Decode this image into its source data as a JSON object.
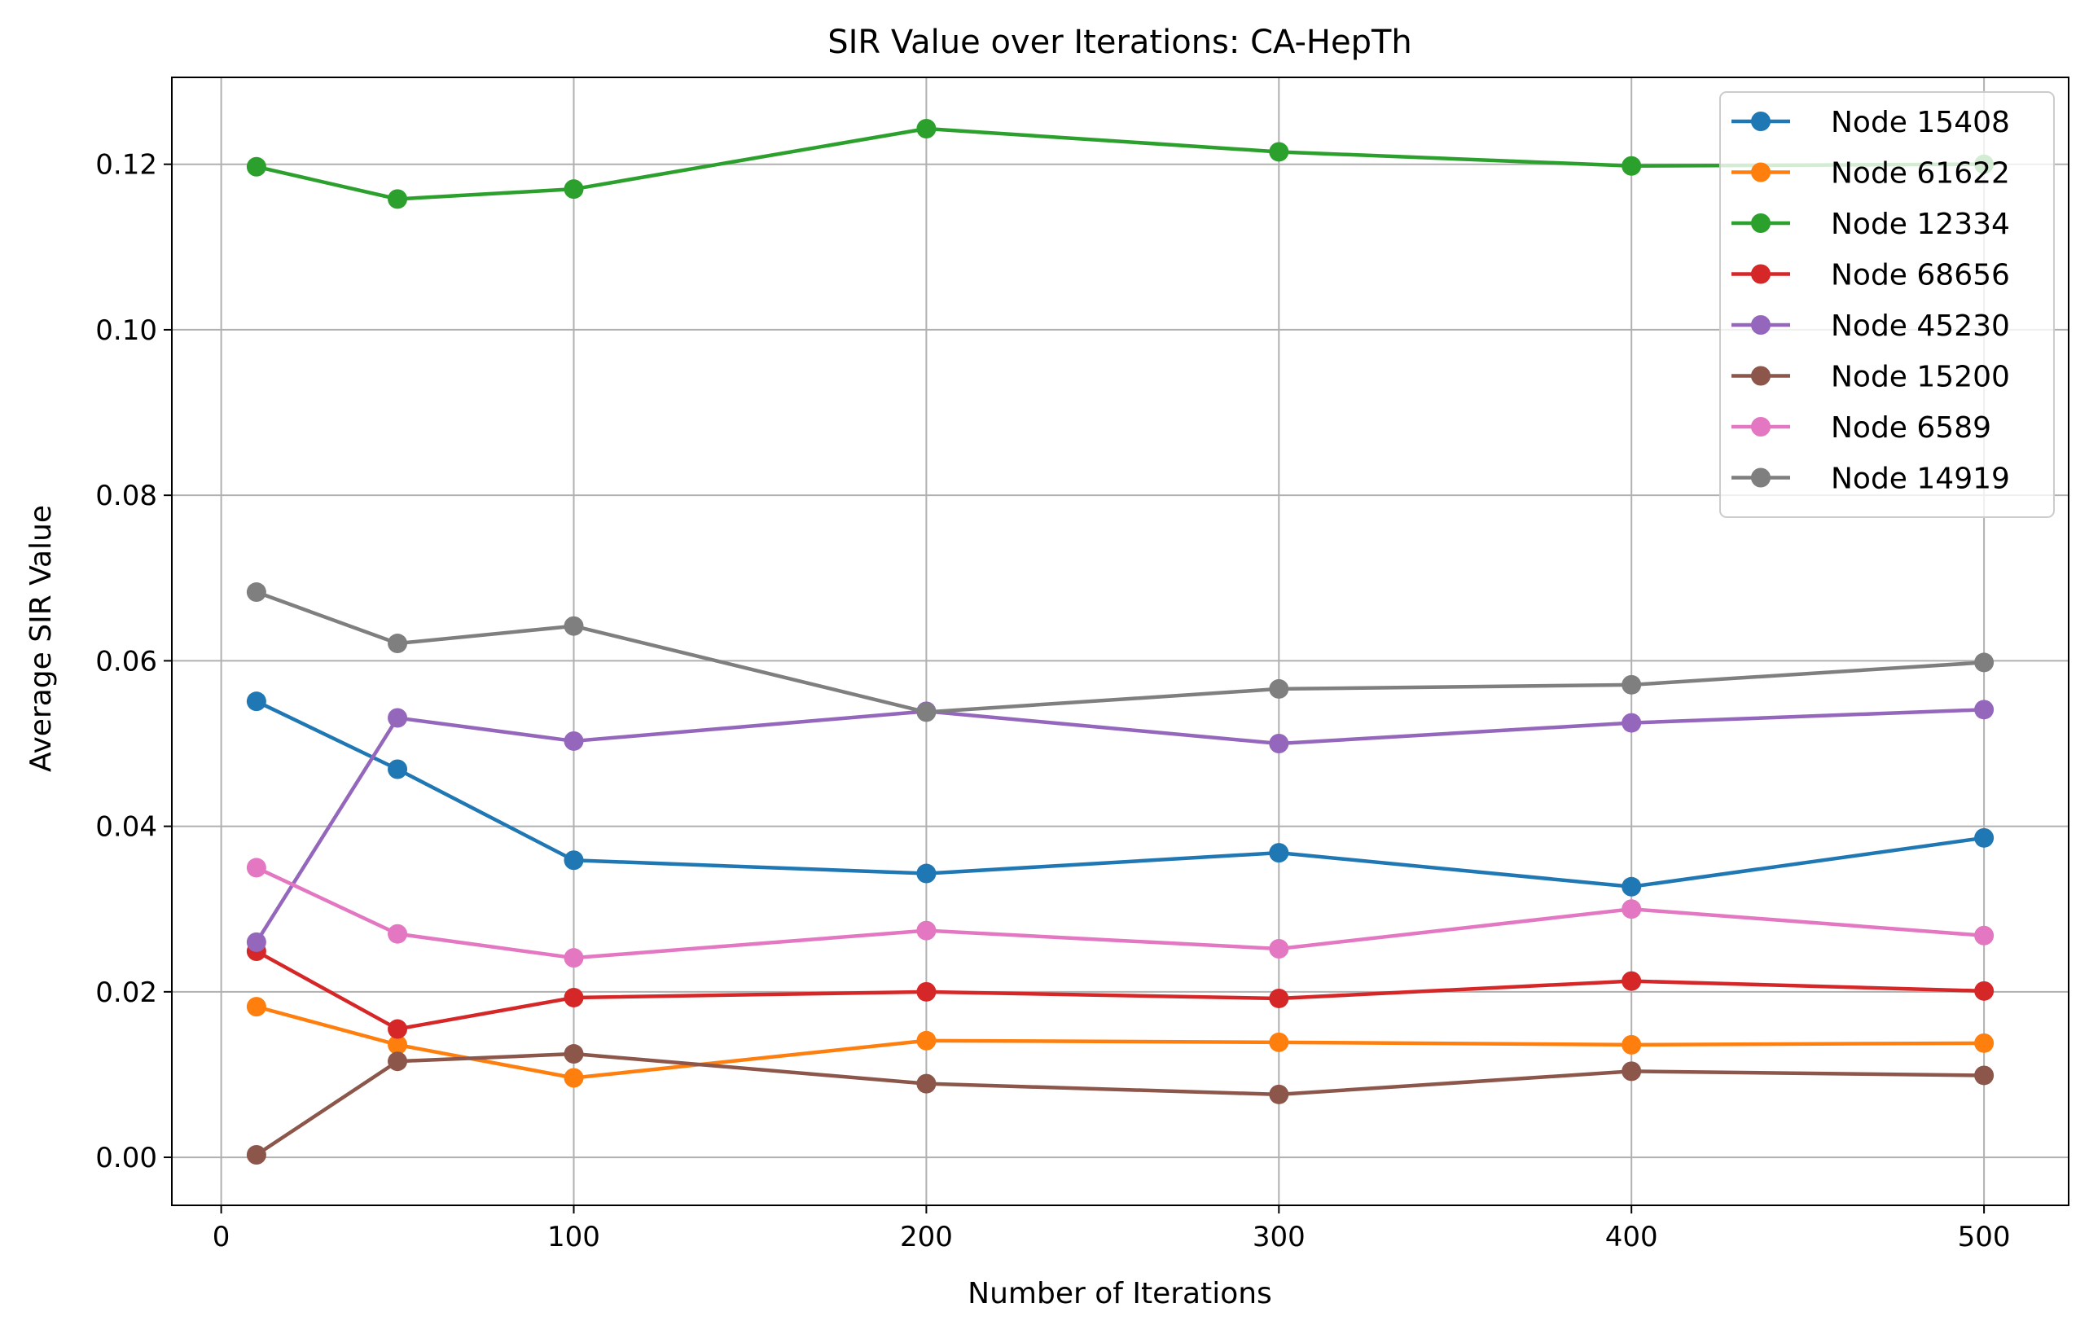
{
  "chart_data": {
    "type": "line",
    "title": "SIR Value over Iterations: CA-HepTh",
    "xlabel": "Number of Iterations",
    "ylabel": "Average SIR Value",
    "x": [
      10,
      50,
      100,
      200,
      300,
      400,
      500
    ],
    "xlim": [
      -14,
      524
    ],
    "ylim": [
      -0.0058,
      0.1305
    ],
    "xticks": [
      0,
      100,
      200,
      300,
      400,
      500
    ],
    "yticks": [
      0.0,
      0.02,
      0.04,
      0.06,
      0.08,
      0.1,
      0.12
    ],
    "xtick_labels": [
      "0",
      "100",
      "200",
      "300",
      "400",
      "500"
    ],
    "ytick_labels": [
      "0.00",
      "0.02",
      "0.04",
      "0.06",
      "0.08",
      "0.10",
      "0.12"
    ],
    "grid": true,
    "legend_position": "top-right",
    "series": [
      {
        "name": "Node 15408",
        "color": "#1f77b4",
        "values": [
          0.0551,
          0.0469,
          0.0359,
          0.0343,
          0.0368,
          0.0327,
          0.0386
        ]
      },
      {
        "name": "Node 61622",
        "color": "#ff7f0e",
        "values": [
          0.0182,
          0.0136,
          0.0096,
          0.0141,
          0.0139,
          0.0136,
          0.0138
        ]
      },
      {
        "name": "Node 12334",
        "color": "#2ca02c",
        "values": [
          0.1197,
          0.1158,
          0.117,
          0.1243,
          0.1215,
          0.1198,
          0.12
        ]
      },
      {
        "name": "Node 68656",
        "color": "#d62728",
        "values": [
          0.0249,
          0.0155,
          0.0193,
          0.02,
          0.0192,
          0.0213,
          0.0201
        ]
      },
      {
        "name": "Node 45230",
        "color": "#9467bd",
        "values": [
          0.026,
          0.0531,
          0.0503,
          0.0539,
          0.05,
          0.0525,
          0.0541
        ]
      },
      {
        "name": "Node 15200",
        "color": "#8c564b",
        "values": [
          0.0003,
          0.0116,
          0.0125,
          0.0089,
          0.0076,
          0.0104,
          0.0099
        ]
      },
      {
        "name": "Node 6589",
        "color": "#e377c2",
        "values": [
          0.035,
          0.027,
          0.0241,
          0.0274,
          0.0252,
          0.03,
          0.0268
        ]
      },
      {
        "name": "Node 14919",
        "color": "#7f7f7f",
        "values": [
          0.0683,
          0.0621,
          0.0642,
          0.0538,
          0.0566,
          0.0571,
          0.0598
        ]
      }
    ]
  }
}
